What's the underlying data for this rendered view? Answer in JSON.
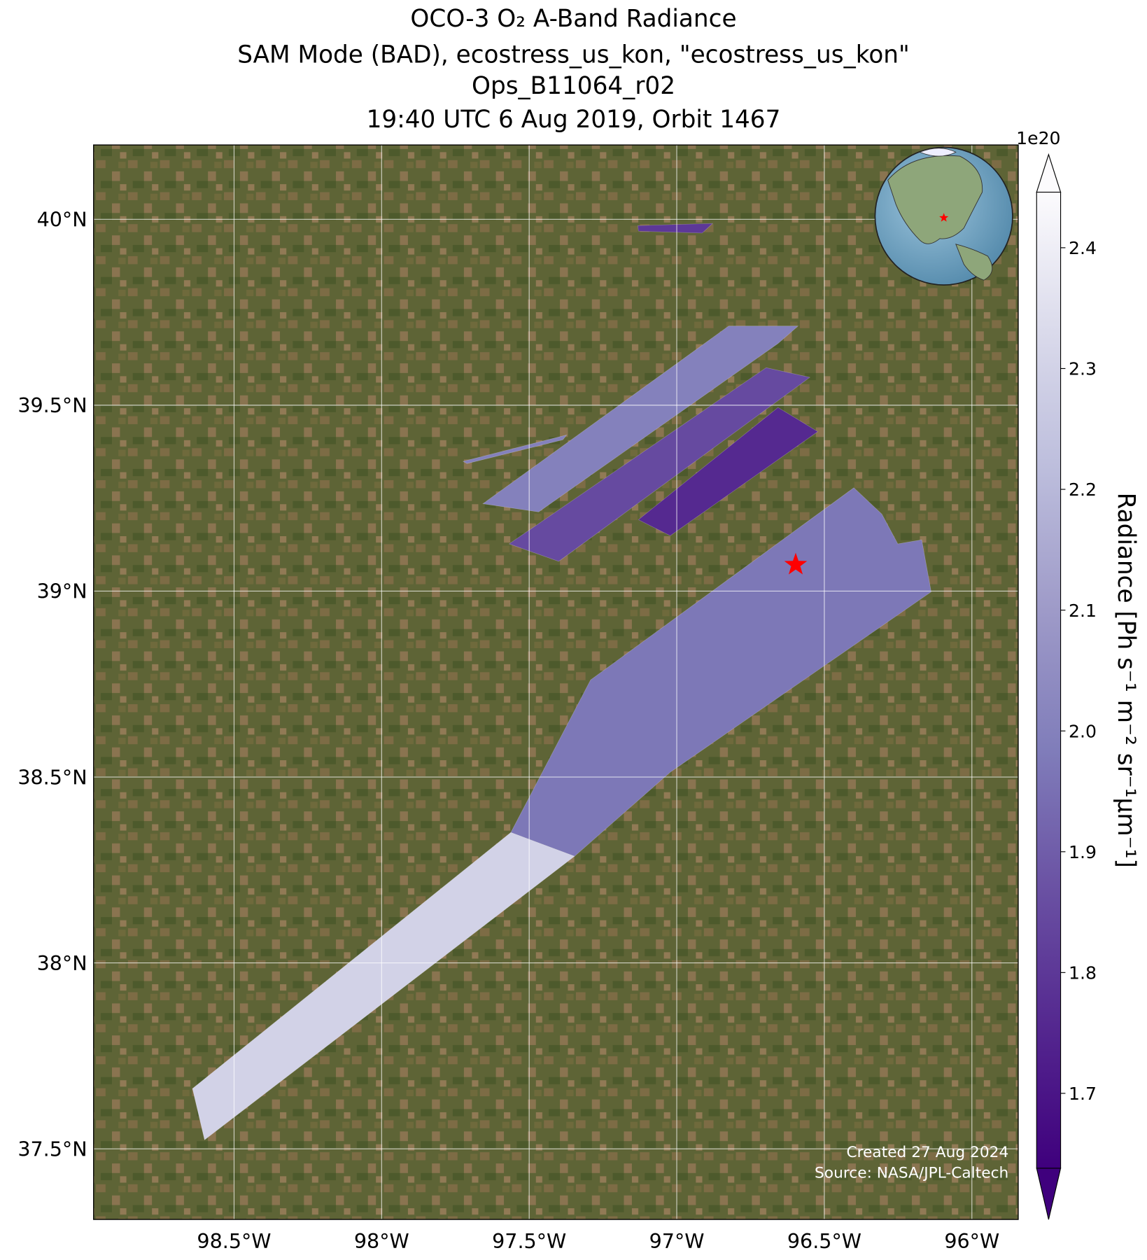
{
  "chart_data": {
    "type": "map",
    "title": [
      "OCO-3 O₂ A-Band Radiance",
      "SAM Mode (BAD), ecostress_us_kon, \"ecostress_us_kon\"",
      "Ops_B11064_r02",
      "19:40 UTC 6 Aug 2019, Orbit 1467"
    ],
    "xlim": [
      -98.976,
      -95.843
    ],
    "ylim": [
      37.31,
      40.2
    ],
    "xticks": [
      {
        "value": -98.5,
        "label": "98.5°W"
      },
      {
        "value": -98,
        "label": "98°W"
      },
      {
        "value": -97.5,
        "label": "97.5°W"
      },
      {
        "value": -97,
        "label": "97°W"
      },
      {
        "value": -96.5,
        "label": "96.5°W"
      },
      {
        "value": -96,
        "label": "96°W"
      }
    ],
    "yticks": [
      {
        "value": 37.5,
        "label": "37.5°N"
      },
      {
        "value": 38,
        "label": "38°N"
      },
      {
        "value": 38.5,
        "label": "38.5°N"
      },
      {
        "value": 39,
        "label": "39°N"
      },
      {
        "value": 39.5,
        "label": "39.5°N"
      },
      {
        "value": 40,
        "label": "40°N"
      }
    ],
    "grid": true,
    "target": {
      "lon": -96.597,
      "lat": 39.071,
      "color": "#ff0000"
    },
    "swaths": [
      {
        "corners": [
          [
            -98.641,
            37.662
          ],
          [
            -97.562,
            38.351
          ],
          [
            -97.346,
            38.287
          ],
          [
            -98.6,
            37.524
          ]
        ],
        "value": 2.3
      },
      {
        "corners": [
          [
            -97.562,
            38.351
          ],
          [
            -97.292,
            38.761
          ],
          [
            -96.4,
            39.278
          ],
          [
            -96.305,
            39.207
          ],
          [
            -96.251,
            39.127
          ],
          [
            -96.17,
            39.138
          ],
          [
            -96.138,
            38.998
          ],
          [
            -97.022,
            38.513
          ],
          [
            -97.346,
            38.287
          ]
        ],
        "value": 1.97
      },
      {
        "corners": [
          [
            -97.657,
            39.235
          ],
          [
            -96.824,
            39.713
          ],
          [
            -96.589,
            39.713
          ],
          [
            -96.657,
            39.666
          ],
          [
            -97.468,
            39.213
          ]
        ],
        "value": 2.0
      },
      {
        "corners": [
          [
            -97.568,
            39.127
          ],
          [
            -96.697,
            39.601
          ],
          [
            -96.549,
            39.575
          ],
          [
            -97.4,
            39.08
          ]
        ],
        "value": 1.85
      },
      {
        "corners": [
          [
            -97.13,
            39.192
          ],
          [
            -96.657,
            39.494
          ],
          [
            -96.522,
            39.429
          ],
          [
            -97.022,
            39.149
          ]
        ],
        "value": 1.76
      },
      {
        "corners": [
          [
            -97.724,
            39.349
          ],
          [
            -97.373,
            39.42
          ],
          [
            -97.386,
            39.407
          ],
          [
            -97.711,
            39.343
          ]
        ],
        "value": 2.0
      },
      {
        "corners": [
          [
            -97.132,
            39.983
          ],
          [
            -96.878,
            39.989
          ],
          [
            -96.914,
            39.963
          ],
          [
            -97.13,
            39.968
          ]
        ],
        "value": 1.8
      }
    ],
    "colorbar": {
      "label": "Radiance [Ph s⁻¹ m⁻² sr⁻¹μm⁻¹]",
      "offset_label": "1e20",
      "clim": [
        1.638,
        2.446
      ],
      "ticks": [
        1.7,
        1.8,
        1.9,
        2.0,
        2.1,
        2.2,
        2.3,
        2.4
      ],
      "tick_labels": [
        "1.7",
        "1.8",
        "1.9",
        "2.0",
        "2.1",
        "2.2",
        "2.3",
        "2.4"
      ],
      "colormap": "Purples",
      "colors": [
        "#3f007d",
        "#54278f",
        "#6a51a3",
        "#807dba",
        "#9e9ac8",
        "#bcbddc",
        "#dadaeb",
        "#fcfbfd"
      ]
    },
    "annotations": [
      "Created 27 Aug 2024",
      "Source: NASA/JPL-Caltech"
    ]
  }
}
